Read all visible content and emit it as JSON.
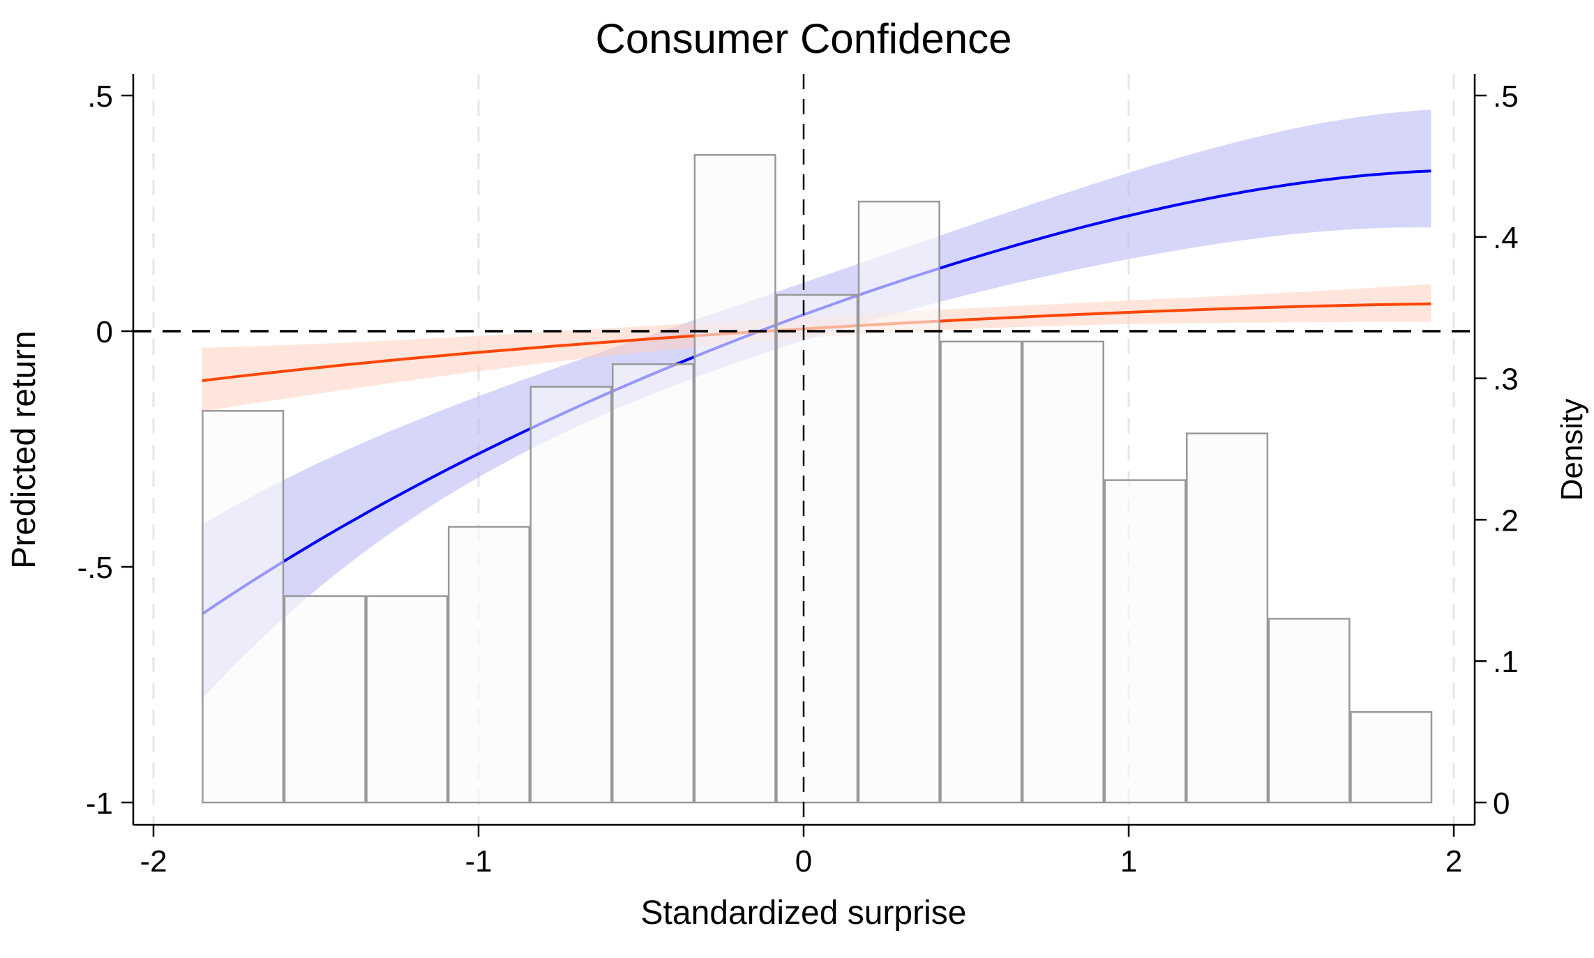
{
  "chart_data": {
    "type": "bar",
    "title": "Consumer Confidence",
    "xlabel": "Standardized surprise",
    "ylabel": "Predicted return",
    "y2label": "Density",
    "xlim": [
      -2.15,
      2.07
    ],
    "ylim": [
      -1.05,
      0.55
    ],
    "y2lim": [
      0,
      0.5
    ],
    "xticks": [
      {
        "v": -2,
        "label": "-2"
      },
      {
        "v": -1,
        "label": "-1"
      },
      {
        "v": 0,
        "label": "0"
      },
      {
        "v": 1,
        "label": "1"
      },
      {
        "v": 2,
        "label": "2"
      }
    ],
    "yticks": [
      {
        "v": 0.5,
        "label": ".5"
      },
      {
        "v": 0,
        "label": "0"
      },
      {
        "v": -0.5,
        "label": "-.5"
      },
      {
        "v": -1,
        "label": "-1"
      }
    ],
    "y2ticks": [
      {
        "v": 0.5,
        "label": ".5"
      },
      {
        "v": 0.4,
        "label": ".4"
      },
      {
        "v": 0.3,
        "label": ".3"
      },
      {
        "v": 0.2,
        "label": ".2"
      },
      {
        "v": 0.1,
        "label": ".1"
      },
      {
        "v": 0,
        "label": "0"
      }
    ],
    "histogram": {
      "start": -1.851,
      "bin_width": 0.2523,
      "density": [
        0.277,
        0.146,
        0.146,
        0.195,
        0.294,
        0.31,
        0.458,
        0.359,
        0.425,
        0.326,
        0.326,
        0.228,
        0.261,
        0.13,
        0.064
      ]
    },
    "series": [
      {
        "name": "blue",
        "color": "#0000ff",
        "band_color": "#b4b4f8",
        "x": [
          -1.85,
          -1,
          0,
          1,
          1.93
        ],
        "fit": [
          -0.6,
          -0.26,
          0.035,
          0.245,
          0.34
        ],
        "ci_upper": [
          -0.41,
          -0.138,
          0.103,
          0.336,
          0.47
        ],
        "ci_lower": [
          -0.78,
          -0.31,
          -0.02,
          0.153,
          0.22
        ]
      },
      {
        "name": "orange",
        "color": "#ff4500",
        "band_color": "#ffd0bd",
        "x": [
          -1.85,
          -1,
          0,
          1,
          1.93
        ],
        "fit": [
          -0.105,
          -0.045,
          0.005,
          0.04,
          0.058
        ],
        "ci_upper": [
          -0.035,
          -0.01,
          0.03,
          0.065,
          0.1
        ],
        "ci_lower": [
          -0.17,
          -0.085,
          -0.015,
          0.015,
          0.02
        ]
      }
    ],
    "reference_lines": {
      "x": 0,
      "y": 0
    },
    "grid": "vertical dashed at x ticks"
  }
}
